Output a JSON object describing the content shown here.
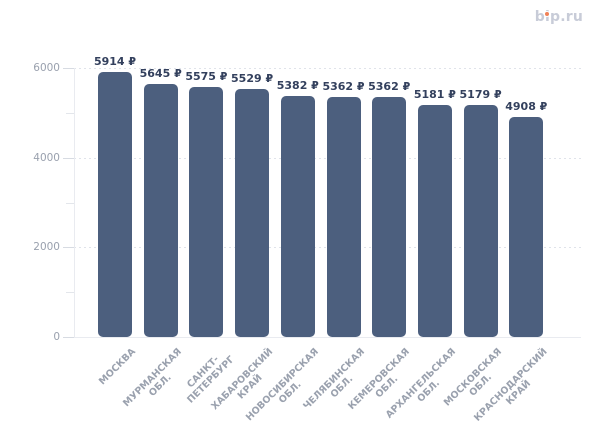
{
  "header": {
    "logo_text": "bip.ru"
  },
  "colors": {
    "background": "#ffffff",
    "bar": "#4c5f7e",
    "value_label": "#33405d",
    "axis_label": "#9aa1ae",
    "grid_line": "#e0e3ea",
    "axis_line": "#e9ebf0",
    "tick": "#d7dbe2",
    "logo_text": "#c8ccd8",
    "logo_dot": "#f08157"
  },
  "chart_data": {
    "type": "bar",
    "title": "",
    "xlabel": "",
    "ylabel": "",
    "unit": "₽",
    "categories": [
      "МОСКВА",
      "МУРМАНСКАЯ ОБЛ.",
      "САНКТ-ПЕТЕРБУРГ",
      "ХАБАРОВСКИЙ КРАЙ",
      "НОВОСИБИРСКАЯ ОБЛ.",
      "ЧЕЛЯБИНСКАЯ ОБЛ.",
      "КЕМЕРОВСКАЯ ОБЛ.",
      "АРХАНГЕЛЬСКАЯ ОБЛ.",
      "МОСКОВСКАЯ ОБЛ.",
      "КРАСНОДАРСКИЙ КРАЙ"
    ],
    "categories_lines": [
      [
        "МОСКВА"
      ],
      [
        "МУРМАНСКАЯ",
        "ОБЛ."
      ],
      [
        "САНКТ-",
        "ПЕТЕРБУРГ"
      ],
      [
        "ХАБАРОВСКИЙ",
        "КРАЙ"
      ],
      [
        "НОВОСИБИРСКАЯ",
        "ОБЛ."
      ],
      [
        "ЧЕЛЯБИНСКАЯ",
        "ОБЛ."
      ],
      [
        "КЕМЕРОВСКАЯ",
        "ОБЛ."
      ],
      [
        "АРХАНГЕЛЬСКАЯ",
        "ОБЛ."
      ],
      [
        "МОСКОВСКАЯ",
        "ОБЛ."
      ],
      [
        "КРАСНОДАРСКИЙ",
        "КРАЙ"
      ]
    ],
    "values": [
      5914,
      5645,
      5575,
      5529,
      5382,
      5362,
      5362,
      5181,
      5179,
      4908
    ],
    "value_labels": [
      "5914 ₽",
      "5645 ₽",
      "5575 ₽",
      "5529 ₽",
      "5382 ₽",
      "5362 ₽",
      "5362 ₽",
      "5181 ₽",
      "5179 ₽",
      "4908 ₽"
    ],
    "ylim": [
      0,
      6000
    ],
    "y_ticks": [
      0,
      2000,
      4000,
      6000
    ],
    "y_minor_ticks": [
      1000,
      3000,
      5000
    ],
    "grid": "horizontal dotted lines at major y ticks",
    "legend": "none",
    "bar_corner_radius_px": 5
  }
}
